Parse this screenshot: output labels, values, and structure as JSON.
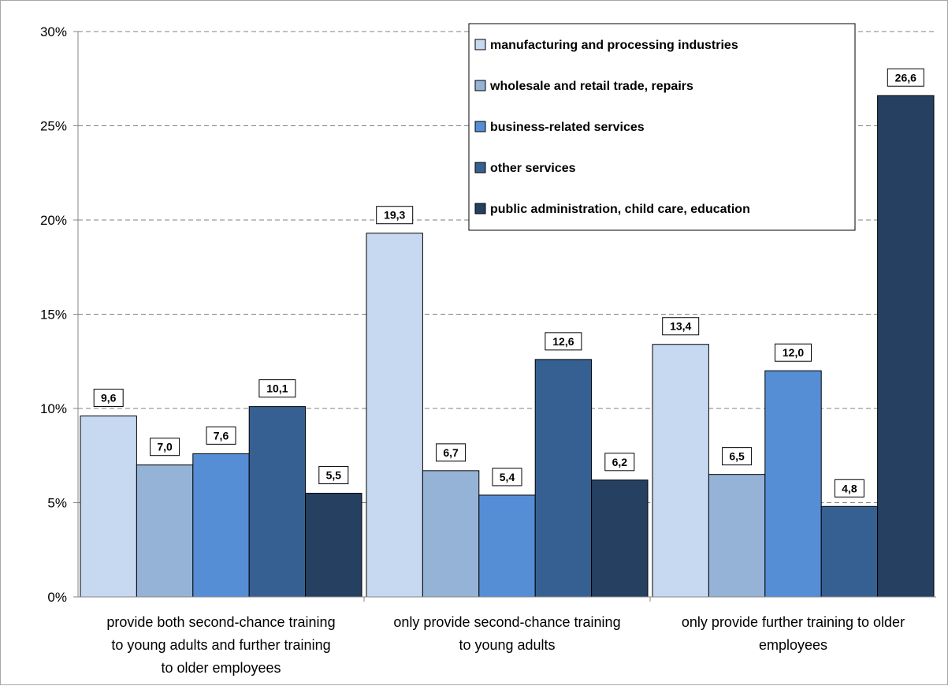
{
  "chart_data": {
    "type": "bar",
    "y_tick_labels": [
      "0%",
      "5%",
      "10%",
      "15%",
      "20%",
      "25%",
      "30%"
    ],
    "ylim": [
      0,
      30
    ],
    "grid": true,
    "legend_position": "top-right",
    "categories": [
      [
        "provide both second-chance training",
        "to young adults and further training",
        "to older employees"
      ],
      [
        "only provide second-chance training",
        "to young adults"
      ],
      [
        "only provide further training to older",
        "employees"
      ]
    ],
    "series": [
      {
        "name": "manufacturing and processing industries",
        "color": "#c6d9f1",
        "values": [
          9.6,
          19.3,
          13.4
        ],
        "labels": [
          "9,6",
          "19,3",
          "13,4"
        ]
      },
      {
        "name": "wholesale and retail trade, repairs",
        "color": "#95b3d7",
        "values": [
          7.0,
          6.7,
          6.5
        ],
        "labels": [
          "7,0",
          "6,7",
          "6,5"
        ]
      },
      {
        "name": "business-related services",
        "color": "#558ed5",
        "values": [
          7.6,
          5.4,
          12.0
        ],
        "labels": [
          "7,6",
          "5,4",
          "12,0"
        ]
      },
      {
        "name": "other services",
        "color": "#376092",
        "values": [
          10.1,
          12.6,
          4.8
        ],
        "labels": [
          "10,1",
          "12,6",
          "4,8"
        ]
      },
      {
        "name": "public administration, child care, education",
        "color": "#254061",
        "values": [
          5.5,
          6.2,
          26.6
        ],
        "labels": [
          "5,5",
          "6,2",
          "26,6"
        ]
      }
    ]
  }
}
